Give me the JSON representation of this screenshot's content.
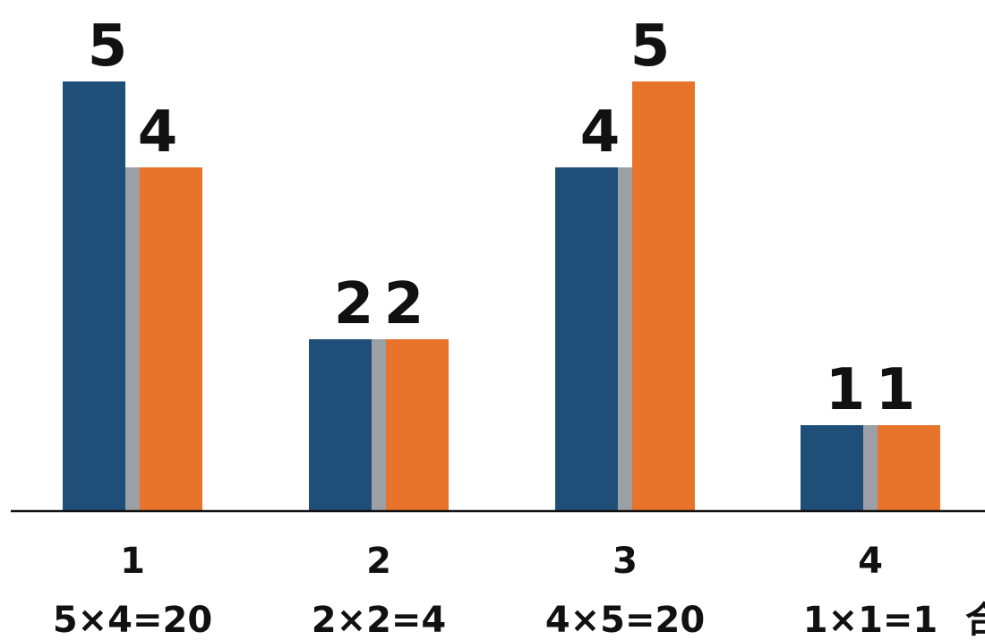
{
  "chart_data": {
    "type": "bar",
    "title": "",
    "xlabel": "",
    "ylabel": "",
    "ylim": [
      0,
      5
    ],
    "grid": false,
    "categories": [
      "1",
      "2",
      "3",
      "4"
    ],
    "equations": [
      "5×4=20",
      "2×2=4",
      "4×5=20",
      "1×1=1"
    ],
    "trailing_text": "合",
    "series": [
      {
        "values": [
          5,
          2,
          4,
          1
        ],
        "color": "#1f4e79"
      },
      {
        "values": [
          4,
          2,
          5,
          1
        ],
        "color": "#e8732a"
      }
    ],
    "separator_color": "#9aa0a6",
    "axis_color": "#111111"
  }
}
